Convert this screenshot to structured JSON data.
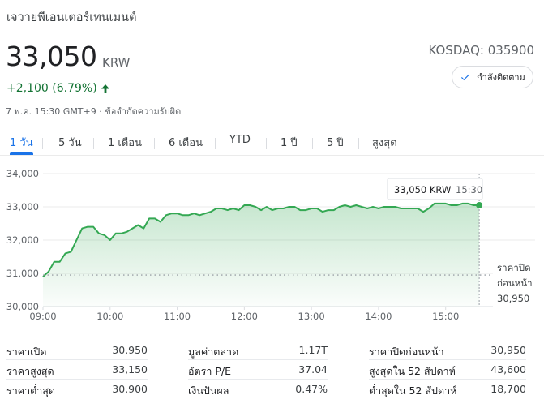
{
  "header": {
    "company_name": "เจวายพีเอนเตอร์เทนเมนต์",
    "price": "33,050",
    "currency": "KRW",
    "exchange": "KOSDAQ: 035900",
    "change_text": "+2,100 (6.79%)",
    "timestamp": "7 พ.ค. 15:30 GMT+9 · ข้อจำกัดความรับผิด",
    "follow_label": "กำลังติดตาม"
  },
  "tabs": [
    {
      "label": "1 วัน",
      "active": true
    },
    {
      "label": "5 วัน",
      "active": false
    },
    {
      "label": "1 เดือน",
      "active": false
    },
    {
      "label": "6 เดือน",
      "active": false
    },
    {
      "label": "YTD",
      "active": false
    },
    {
      "label": "1 ปี",
      "active": false
    },
    {
      "label": "5 ปี",
      "active": false
    },
    {
      "label": "สูงสุด",
      "active": false
    }
  ],
  "chart_data": {
    "type": "area",
    "title": "",
    "xlabel": "",
    "ylabel": "",
    "x": [
      "09:00",
      "09:05",
      "09:10",
      "09:15",
      "09:20",
      "09:25",
      "09:30",
      "09:35",
      "09:40",
      "09:45",
      "09:50",
      "09:55",
      "10:00",
      "10:05",
      "10:10",
      "10:15",
      "10:20",
      "10:25",
      "10:30",
      "10:35",
      "10:40",
      "10:45",
      "10:50",
      "10:55",
      "11:00",
      "11:05",
      "11:10",
      "11:15",
      "11:20",
      "11:25",
      "11:30",
      "11:35",
      "11:40",
      "11:45",
      "11:50",
      "11:55",
      "12:00",
      "12:05",
      "12:10",
      "12:15",
      "12:20",
      "12:25",
      "12:30",
      "12:35",
      "12:40",
      "12:45",
      "12:50",
      "12:55",
      "13:00",
      "13:05",
      "13:10",
      "13:15",
      "13:20",
      "13:25",
      "13:30",
      "13:35",
      "13:40",
      "13:45",
      "13:50",
      "13:55",
      "14:00",
      "14:05",
      "14:10",
      "14:15",
      "14:20",
      "14:25",
      "14:30",
      "14:35",
      "14:40",
      "14:45",
      "14:50",
      "14:55",
      "15:00",
      "15:05",
      "15:10",
      "15:15",
      "15:20",
      "15:25",
      "15:30"
    ],
    "y": [
      30900,
      31050,
      31350,
      31350,
      31600,
      31650,
      32000,
      32350,
      32400,
      32400,
      32200,
      32150,
      32000,
      32200,
      32200,
      32250,
      32350,
      32450,
      32350,
      32650,
      32650,
      32550,
      32750,
      32800,
      32800,
      32750,
      32750,
      32800,
      32750,
      32800,
      32850,
      32950,
      32950,
      32900,
      32950,
      32900,
      33050,
      33050,
      33000,
      32900,
      33000,
      32900,
      32950,
      32950,
      33000,
      33000,
      32900,
      32900,
      32950,
      32950,
      32850,
      32900,
      32900,
      33000,
      33050,
      33000,
      33050,
      33000,
      32950,
      33000,
      32950,
      33000,
      33000,
      33000,
      32950,
      32950,
      32950,
      32950,
      32850,
      32950,
      33100,
      33100,
      33100,
      33050,
      33050,
      33100,
      33100,
      33050,
      33050
    ],
    "ylim": [
      30000,
      34000
    ],
    "yticks": [
      "34,000",
      "33,000",
      "32,000",
      "31,000",
      "30,000"
    ],
    "ytick_values": [
      34000,
      33000,
      32000,
      31000,
      30000
    ],
    "xticks": [
      "09:00",
      "10:00",
      "11:00",
      "12:00",
      "13:00",
      "14:00",
      "15:00"
    ],
    "xtick_values": [
      0,
      12,
      24,
      36,
      48,
      60,
      72
    ],
    "x_domain": [
      0,
      79
    ],
    "prev_close": 30950,
    "prev_close_label_line1": "ราคาปิด",
    "prev_close_label_line2": "ก่อนหน้า",
    "prev_close_label_value": "30,950",
    "tooltip_price": "33,050 KRW",
    "tooltip_time": "15:30",
    "grid": true,
    "line_color": "#34a853",
    "area_color": "#e6f4ea"
  },
  "stats": {
    "col1": [
      {
        "label": "ราคาเปิด",
        "value": "30,950"
      },
      {
        "label": "ราคาสูงสุด",
        "value": "33,150"
      },
      {
        "label": "ราคาต่ำสุด",
        "value": "30,900"
      }
    ],
    "col2": [
      {
        "label": "มูลค่าตลาด",
        "value": "1.17T"
      },
      {
        "label": "อัตรา P/E",
        "value": "37.04"
      },
      {
        "label": "เงินปันผล",
        "value": "0.47%"
      }
    ],
    "col3": [
      {
        "label": "ราคาปิดก่อนหน้า",
        "value": "30,950"
      },
      {
        "label": "สูงสุดใน 52 สัปดาห์",
        "value": "43,600"
      },
      {
        "label": "ต่ำสุดใน 52 สัปดาห์",
        "value": "18,700"
      }
    ]
  },
  "colors": {
    "accent": "#1a73e8",
    "positive": "#137333",
    "line": "#34a853"
  }
}
